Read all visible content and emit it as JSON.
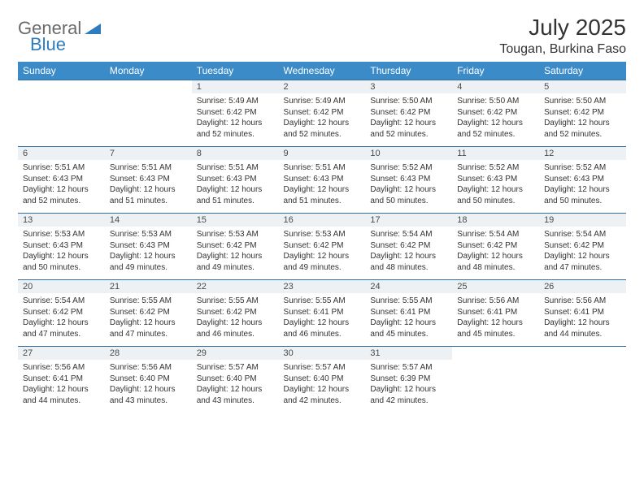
{
  "logo": {
    "general": "General",
    "blue": "Blue"
  },
  "title": "July 2025",
  "location": "Tougan, Burkina Faso",
  "style": {
    "header_bg": "#3b8bc9",
    "header_text_color": "#ffffff",
    "daynum_bg": "#eef1f3",
    "border_color": "#2f6fa3",
    "title_fontsize": 28,
    "location_fontsize": 16,
    "day_fontsize": 10,
    "logo_gray": "#6a6a6a",
    "logo_blue": "#2f7bbf"
  },
  "weekdays": [
    "Sunday",
    "Monday",
    "Tuesday",
    "Wednesday",
    "Thursday",
    "Friday",
    "Saturday"
  ],
  "weeks": [
    [
      null,
      null,
      {
        "n": "1",
        "sr": "5:49 AM",
        "ss": "6:42 PM",
        "dl": "12 hours and 52 minutes."
      },
      {
        "n": "2",
        "sr": "5:49 AM",
        "ss": "6:42 PM",
        "dl": "12 hours and 52 minutes."
      },
      {
        "n": "3",
        "sr": "5:50 AM",
        "ss": "6:42 PM",
        "dl": "12 hours and 52 minutes."
      },
      {
        "n": "4",
        "sr": "5:50 AM",
        "ss": "6:42 PM",
        "dl": "12 hours and 52 minutes."
      },
      {
        "n": "5",
        "sr": "5:50 AM",
        "ss": "6:42 PM",
        "dl": "12 hours and 52 minutes."
      }
    ],
    [
      {
        "n": "6",
        "sr": "5:51 AM",
        "ss": "6:43 PM",
        "dl": "12 hours and 52 minutes."
      },
      {
        "n": "7",
        "sr": "5:51 AM",
        "ss": "6:43 PM",
        "dl": "12 hours and 51 minutes."
      },
      {
        "n": "8",
        "sr": "5:51 AM",
        "ss": "6:43 PM",
        "dl": "12 hours and 51 minutes."
      },
      {
        "n": "9",
        "sr": "5:51 AM",
        "ss": "6:43 PM",
        "dl": "12 hours and 51 minutes."
      },
      {
        "n": "10",
        "sr": "5:52 AM",
        "ss": "6:43 PM",
        "dl": "12 hours and 50 minutes."
      },
      {
        "n": "11",
        "sr": "5:52 AM",
        "ss": "6:43 PM",
        "dl": "12 hours and 50 minutes."
      },
      {
        "n": "12",
        "sr": "5:52 AM",
        "ss": "6:43 PM",
        "dl": "12 hours and 50 minutes."
      }
    ],
    [
      {
        "n": "13",
        "sr": "5:53 AM",
        "ss": "6:43 PM",
        "dl": "12 hours and 50 minutes."
      },
      {
        "n": "14",
        "sr": "5:53 AM",
        "ss": "6:43 PM",
        "dl": "12 hours and 49 minutes."
      },
      {
        "n": "15",
        "sr": "5:53 AM",
        "ss": "6:42 PM",
        "dl": "12 hours and 49 minutes."
      },
      {
        "n": "16",
        "sr": "5:53 AM",
        "ss": "6:42 PM",
        "dl": "12 hours and 49 minutes."
      },
      {
        "n": "17",
        "sr": "5:54 AM",
        "ss": "6:42 PM",
        "dl": "12 hours and 48 minutes."
      },
      {
        "n": "18",
        "sr": "5:54 AM",
        "ss": "6:42 PM",
        "dl": "12 hours and 48 minutes."
      },
      {
        "n": "19",
        "sr": "5:54 AM",
        "ss": "6:42 PM",
        "dl": "12 hours and 47 minutes."
      }
    ],
    [
      {
        "n": "20",
        "sr": "5:54 AM",
        "ss": "6:42 PM",
        "dl": "12 hours and 47 minutes."
      },
      {
        "n": "21",
        "sr": "5:55 AM",
        "ss": "6:42 PM",
        "dl": "12 hours and 47 minutes."
      },
      {
        "n": "22",
        "sr": "5:55 AM",
        "ss": "6:42 PM",
        "dl": "12 hours and 46 minutes."
      },
      {
        "n": "23",
        "sr": "5:55 AM",
        "ss": "6:41 PM",
        "dl": "12 hours and 46 minutes."
      },
      {
        "n": "24",
        "sr": "5:55 AM",
        "ss": "6:41 PM",
        "dl": "12 hours and 45 minutes."
      },
      {
        "n": "25",
        "sr": "5:56 AM",
        "ss": "6:41 PM",
        "dl": "12 hours and 45 minutes."
      },
      {
        "n": "26",
        "sr": "5:56 AM",
        "ss": "6:41 PM",
        "dl": "12 hours and 44 minutes."
      }
    ],
    [
      {
        "n": "27",
        "sr": "5:56 AM",
        "ss": "6:41 PM",
        "dl": "12 hours and 44 minutes."
      },
      {
        "n": "28",
        "sr": "5:56 AM",
        "ss": "6:40 PM",
        "dl": "12 hours and 43 minutes."
      },
      {
        "n": "29",
        "sr": "5:57 AM",
        "ss": "6:40 PM",
        "dl": "12 hours and 43 minutes."
      },
      {
        "n": "30",
        "sr": "5:57 AM",
        "ss": "6:40 PM",
        "dl": "12 hours and 42 minutes."
      },
      {
        "n": "31",
        "sr": "5:57 AM",
        "ss": "6:39 PM",
        "dl": "12 hours and 42 minutes."
      },
      null,
      null
    ]
  ],
  "labels": {
    "sunrise": "Sunrise:",
    "sunset": "Sunset:",
    "daylight": "Daylight:"
  }
}
